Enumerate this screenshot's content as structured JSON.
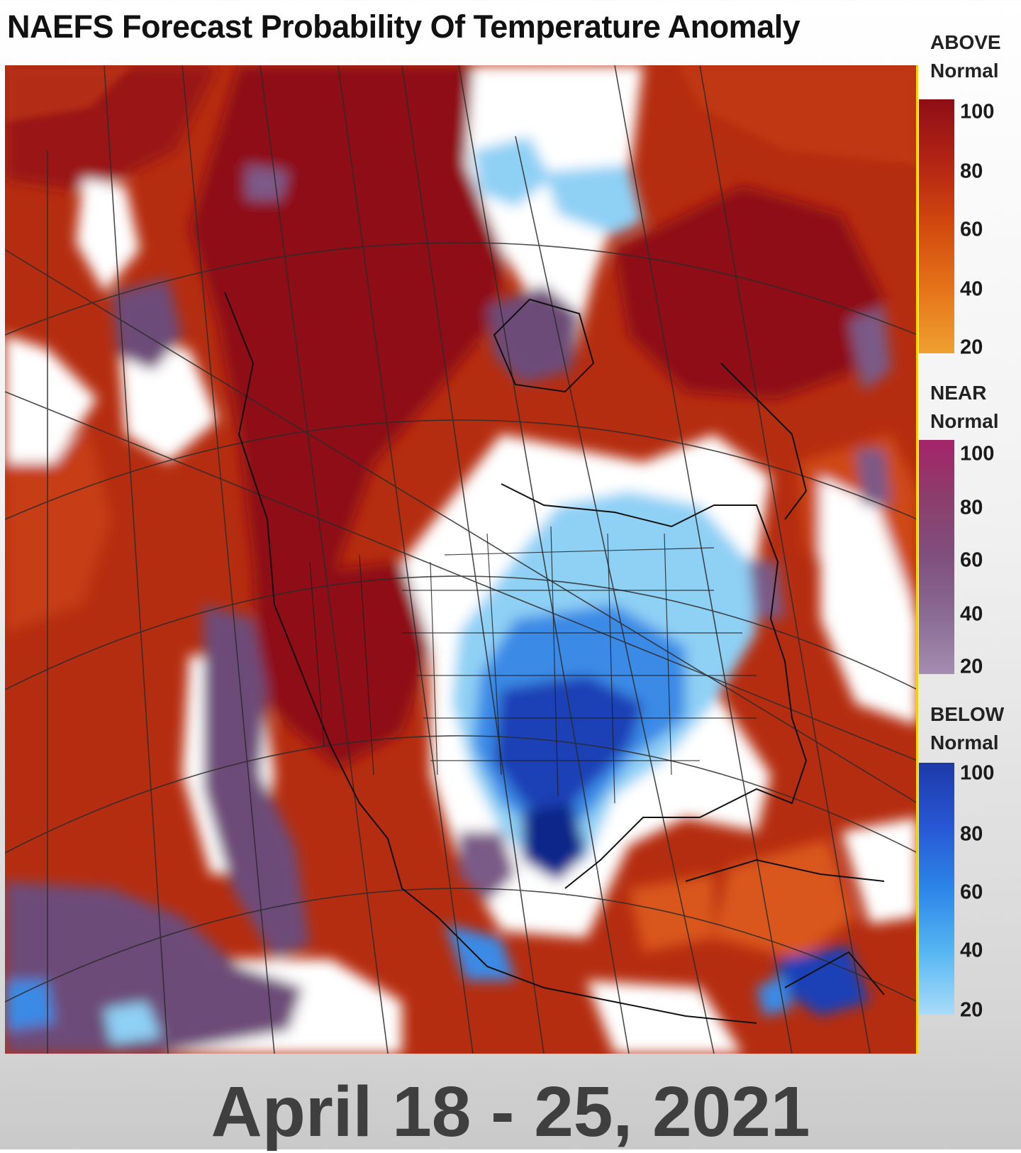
{
  "title": "NAEFS Forecast Probability Of Temperature Anomaly",
  "date_range": "April 18 - 25, 2021",
  "legend": {
    "above": {
      "line1": "ABOVE",
      "line2": "Normal",
      "ticks": [
        "100",
        "80",
        "60",
        "40",
        "20"
      ],
      "colors": [
        "#8e0e16",
        "#b32514",
        "#d24a0e",
        "#e5741a",
        "#efa030"
      ]
    },
    "near": {
      "line1": "NEAR",
      "line2": "Normal",
      "ticks": [
        "100",
        "80",
        "60",
        "40",
        "20"
      ],
      "colors": [
        "#a4246a",
        "#8c3e6b",
        "#7f4f7e",
        "#8a6b94",
        "#a48db0"
      ]
    },
    "below": {
      "line1": "BELOW",
      "line2": "Normal",
      "ticks": [
        "100",
        "80",
        "60",
        "40",
        "20"
      ],
      "colors": [
        "#1d3aa8",
        "#2856d4",
        "#2c86e8",
        "#56b6f2",
        "#a8dcfa"
      ]
    }
  },
  "map": {
    "region": "North America",
    "colors": {
      "above_strong": "#8e0e16",
      "above_mid": "#b02a0e",
      "above_weak": "#d9571a",
      "near": "#6d4b78",
      "near_light": "#9a7aa4",
      "below_light": "#8fd0f5",
      "below_mid": "#3b8ae6",
      "below_strong": "#1a3fb5",
      "neutral": "#ffffff"
    }
  }
}
